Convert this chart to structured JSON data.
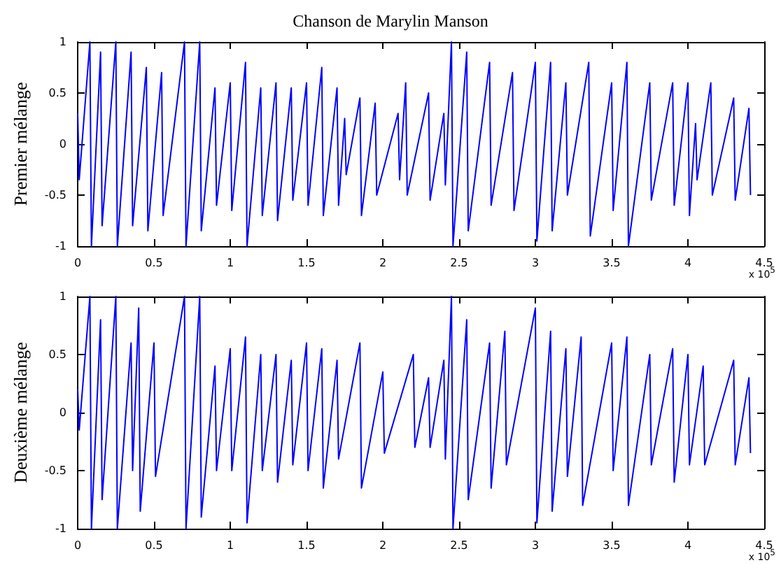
{
  "chart_data": [
    {
      "type": "line",
      "title": "Chanson de Marylin Manson",
      "ylabel": "Premier mélange",
      "annotations": [
        "x 10$^{5}$"
      ],
      "x": [
        0,
        0.01,
        0.08,
        0.09,
        0.15,
        0.16,
        0.25,
        0.26,
        0.35,
        0.36,
        0.45,
        0.46,
        0.55,
        0.56,
        0.7,
        0.71,
        0.8,
        0.81,
        0.9,
        0.91,
        1.0,
        1.01,
        1.1,
        1.11,
        1.2,
        1.21,
        1.3,
        1.31,
        1.4,
        1.41,
        1.5,
        1.51,
        1.6,
        1.61,
        1.7,
        1.71,
        1.75,
        1.76,
        1.85,
        1.86,
        1.95,
        1.96,
        2.1,
        2.11,
        2.15,
        2.16,
        2.3,
        2.31,
        2.4,
        2.41,
        2.45,
        2.46,
        2.55,
        2.56,
        2.7,
        2.71,
        2.85,
        2.86,
        3.0,
        3.01,
        3.1,
        3.11,
        3.2,
        3.21,
        3.35,
        3.36,
        3.5,
        3.51,
        3.6,
        3.61,
        3.75,
        3.76,
        3.9,
        3.91,
        4.0,
        4.01,
        4.05,
        4.06,
        4.15,
        4.16,
        4.3,
        4.31,
        4.4,
        4.41
      ],
      "series": [
        {
          "color": "#0000ff",
          "values": [
            0.3,
            -0.35,
            1,
            -1,
            0.9,
            -0.8,
            1,
            -1,
            0.9,
            -0.8,
            0.75,
            -0.85,
            0.7,
            -0.7,
            1,
            -1,
            1,
            -0.85,
            0.55,
            -0.6,
            0.6,
            -0.65,
            0.8,
            -1,
            0.55,
            -0.7,
            0.6,
            -0.75,
            0.55,
            -0.55,
            0.6,
            -0.6,
            0.75,
            -0.7,
            0.55,
            -0.6,
            0.25,
            -0.3,
            0.45,
            -0.7,
            0.4,
            -0.5,
            0.3,
            -0.35,
            0.6,
            -0.5,
            0.5,
            -0.55,
            0.3,
            -0.4,
            1,
            -1,
            0.9,
            -0.85,
            0.8,
            -0.6,
            0.7,
            -0.65,
            0.8,
            -0.95,
            0.8,
            -0.85,
            0.6,
            -0.5,
            0.8,
            -0.9,
            0.6,
            -0.65,
            0.8,
            -1,
            0.6,
            -0.55,
            0.6,
            -0.6,
            0.6,
            -0.7,
            0.2,
            -0.35,
            0.6,
            -0.5,
            0.45,
            -0.55,
            0.35,
            -0.5
          ]
        }
      ],
      "xlim": [
        0,
        4.5
      ],
      "xticks": [
        0,
        0.5,
        1,
        1.5,
        2,
        2.5,
        3,
        3.5,
        4,
        4.5
      ],
      "ylim": [
        -1,
        1
      ],
      "yticks": [
        -1,
        -0.5,
        0,
        0.5,
        1
      ],
      "grid": false,
      "marker": "none"
    },
    {
      "type": "line",
      "ylabel": "Deuxième mélange",
      "annotations": [
        "x 10$^{5}$"
      ],
      "x": [
        0,
        0.01,
        0.08,
        0.09,
        0.15,
        0.16,
        0.25,
        0.26,
        0.35,
        0.36,
        0.4,
        0.41,
        0.5,
        0.51,
        0.7,
        0.71,
        0.8,
        0.81,
        0.9,
        0.91,
        1.0,
        1.01,
        1.1,
        1.11,
        1.2,
        1.21,
        1.3,
        1.31,
        1.4,
        1.41,
        1.5,
        1.51,
        1.6,
        1.61,
        1.7,
        1.71,
        1.85,
        1.86,
        2.0,
        2.01,
        2.2,
        2.21,
        2.3,
        2.31,
        2.4,
        2.41,
        2.45,
        2.46,
        2.55,
        2.56,
        2.7,
        2.71,
        2.8,
        2.81,
        3.0,
        3.01,
        3.1,
        3.11,
        3.2,
        3.21,
        3.3,
        3.31,
        3.5,
        3.51,
        3.6,
        3.61,
        3.75,
        3.76,
        3.9,
        3.91,
        4.0,
        4.01,
        4.1,
        4.11,
        4.3,
        4.31,
        4.4,
        4.41
      ],
      "series": [
        {
          "color": "#0000ff",
          "values": [
            0.2,
            -0.15,
            1,
            -1,
            0.8,
            -0.75,
            1,
            -1,
            0.6,
            -0.5,
            0.9,
            -0.85,
            0.6,
            -0.55,
            1,
            -1,
            1,
            -0.9,
            0.4,
            -0.5,
            0.55,
            -0.5,
            0.65,
            -0.95,
            0.5,
            -0.5,
            0.5,
            -0.6,
            0.45,
            -0.45,
            0.6,
            -0.5,
            0.55,
            -0.65,
            0.45,
            -0.4,
            0.6,
            -0.65,
            0.35,
            -0.35,
            0.5,
            -0.3,
            0.3,
            -0.3,
            0.45,
            -0.4,
            1,
            -1,
            0.8,
            -0.75,
            0.6,
            -0.65,
            0.7,
            -0.45,
            0.9,
            -0.95,
            0.7,
            -0.85,
            0.55,
            -0.55,
            0.65,
            -0.8,
            0.6,
            -0.5,
            0.65,
            -0.8,
            0.5,
            -0.45,
            0.55,
            -0.6,
            0.5,
            -0.45,
            0.4,
            -0.45,
            0.45,
            -0.45,
            0.3,
            -0.35
          ]
        }
      ],
      "xlim": [
        0,
        4.5
      ],
      "xticks": [
        0,
        0.5,
        1,
        1.5,
        2,
        2.5,
        3,
        3.5,
        4,
        4.5
      ],
      "ylim": [
        -1,
        1
      ],
      "yticks": [
        -1,
        -0.5,
        0,
        0.5,
        1
      ],
      "grid": false,
      "marker": "none"
    }
  ]
}
